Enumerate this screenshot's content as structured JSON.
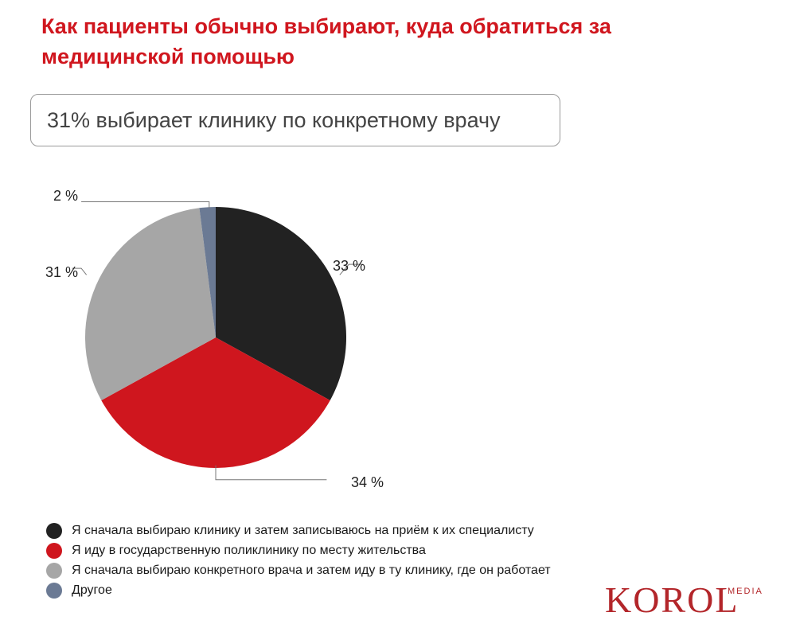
{
  "title": "Как пациенты обычно выбирают, куда обратиться за медицинской помощью",
  "callout": "31% выбирает клинику по конкретному врачу",
  "chart_data": {
    "type": "pie",
    "title": "Как пациенты обычно выбирают, куда обратиться за медицинской помощью",
    "slices": [
      {
        "label": "Я сначала выбираю клинику и затем записываюсь на приём к их специалисту",
        "value": 33,
        "value_label": "33 %",
        "color": "#222222"
      },
      {
        "label": "Я иду в государственную поликлинику по месту жительства",
        "value": 34,
        "value_label": "34 %",
        "color": "#cf161e"
      },
      {
        "label": "Я сначала выбираю конкретного врача и затем иду в ту клинику, где он работает",
        "value": 31,
        "value_label": "31 %",
        "color": "#a6a6a6"
      },
      {
        "label": "Другое",
        "value": 2,
        "value_label": "2 %",
        "color": "#6b7a94"
      }
    ],
    "legend_position": "bottom-left"
  },
  "brand": {
    "name": "KOROL",
    "sub": "MEDIA"
  }
}
